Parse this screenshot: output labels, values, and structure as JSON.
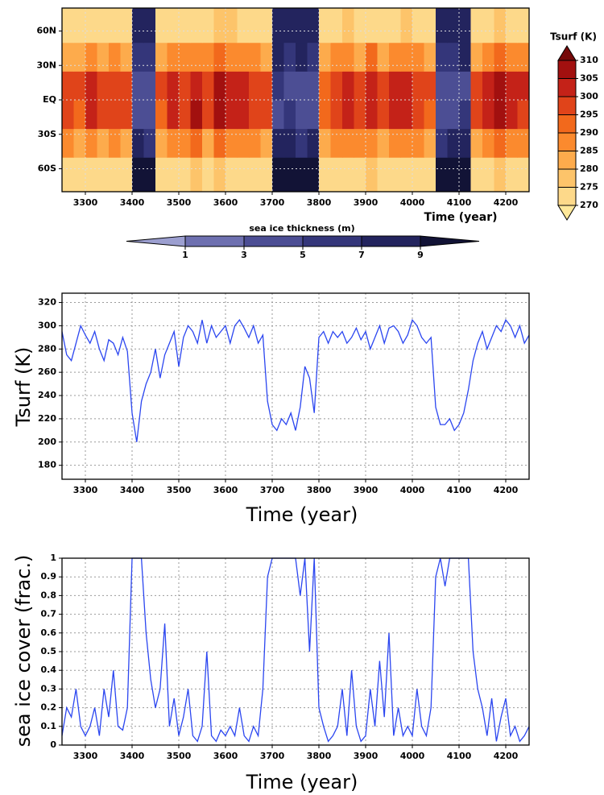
{
  "chart_data": [
    {
      "type": "heatmap",
      "xlabel": "Time (year)",
      "xlim": [
        3250,
        4250
      ],
      "xticks": [
        3300,
        3400,
        3500,
        3600,
        3700,
        3800,
        3900,
        4000,
        4100,
        4200
      ],
      "ylim": [
        -80,
        80
      ],
      "yticks": [
        {
          "value": -60,
          "label": "60S"
        },
        {
          "value": -30,
          "label": "30S"
        },
        {
          "value": 0,
          "label": "EQ"
        },
        {
          "value": 30,
          "label": "30N"
        },
        {
          "value": 60,
          "label": "60N"
        }
      ],
      "grid": true,
      "x_edges": [
        3250,
        3275,
        3300,
        3325,
        3350,
        3375,
        3400,
        3425,
        3450,
        3475,
        3500,
        3525,
        3550,
        3575,
        3600,
        3625,
        3650,
        3675,
        3700,
        3725,
        3750,
        3775,
        3800,
        3825,
        3850,
        3875,
        3900,
        3925,
        3950,
        3975,
        4000,
        4025,
        4050,
        4075,
        4100,
        4125,
        4150,
        4175,
        4200,
        4225,
        4250
      ],
      "y_edges": [
        -80,
        -50,
        -25,
        0,
        25,
        50,
        80
      ],
      "values": [
        [
          272,
          270,
          274,
          271,
          273,
          270,
          null,
          null,
          271,
          274,
          273,
          275,
          272,
          276,
          274,
          273,
          272,
          271,
          null,
          null,
          null,
          null,
          270,
          273,
          274,
          272,
          275,
          271,
          273,
          274,
          272,
          270,
          null,
          null,
          null,
          271,
          273,
          275,
          274,
          272
        ],
        [
          285,
          280,
          287,
          283,
          286,
          282,
          null,
          null,
          282,
          288,
          286,
          290,
          284,
          291,
          288,
          287,
          285,
          283,
          null,
          null,
          null,
          null,
          281,
          286,
          288,
          285,
          289,
          284,
          287,
          289,
          285,
          282,
          null,
          null,
          null,
          283,
          287,
          290,
          288,
          286
        ],
        [
          298,
          294,
          300,
          296,
          299,
          295,
          null,
          null,
          294,
          301,
          299,
          305,
          297,
          306,
          302,
          300,
          298,
          296,
          null,
          null,
          null,
          null,
          293,
          299,
          301,
          298,
          303,
          297,
          300,
          303,
          298,
          294,
          null,
          null,
          null,
          296,
          300,
          305,
          303,
          299
        ],
        [
          297,
          295,
          301,
          295,
          298,
          296,
          null,
          null,
          295,
          302,
          298,
          304,
          298,
          307,
          301,
          301,
          297,
          297,
          null,
          null,
          null,
          null,
          294,
          298,
          302,
          297,
          304,
          296,
          301,
          302,
          299,
          295,
          null,
          null,
          null,
          297,
          301,
          306,
          302,
          300
        ],
        [
          284,
          281,
          286,
          284,
          285,
          283,
          null,
          null,
          283,
          287,
          287,
          289,
          285,
          290,
          289,
          286,
          286,
          282,
          null,
          null,
          null,
          null,
          282,
          285,
          289,
          284,
          290,
          283,
          288,
          288,
          286,
          281,
          null,
          null,
          null,
          284,
          286,
          291,
          287,
          285
        ],
        [
          271,
          270,
          273,
          272,
          272,
          271,
          null,
          null,
          270,
          273,
          274,
          274,
          271,
          275,
          275,
          272,
          273,
          270,
          null,
          null,
          null,
          null,
          271,
          272,
          275,
          271,
          274,
          272,
          272,
          275,
          271,
          270,
          null,
          null,
          null,
          272,
          272,
          276,
          273,
          271
        ]
      ],
      "ice_values": [
        [
          null,
          null,
          null,
          null,
          null,
          null,
          9,
          9,
          null,
          null,
          null,
          null,
          null,
          null,
          null,
          null,
          null,
          null,
          9,
          9,
          9,
          9,
          null,
          null,
          null,
          null,
          null,
          null,
          null,
          null,
          null,
          null,
          9,
          9,
          9,
          null,
          null,
          null,
          null,
          null
        ],
        [
          null,
          null,
          null,
          null,
          null,
          null,
          7,
          6,
          null,
          null,
          null,
          null,
          null,
          null,
          null,
          null,
          null,
          null,
          7,
          7,
          6,
          7,
          null,
          null,
          null,
          null,
          null,
          null,
          null,
          null,
          null,
          null,
          6,
          7,
          7,
          null,
          null,
          null,
          null,
          null
        ],
        [
          null,
          null,
          null,
          null,
          null,
          null,
          4,
          3,
          null,
          null,
          null,
          null,
          null,
          null,
          null,
          null,
          null,
          null,
          4,
          5,
          4,
          4,
          null,
          null,
          null,
          null,
          null,
          null,
          null,
          null,
          null,
          null,
          3,
          4,
          5,
          null,
          null,
          null,
          null,
          null
        ],
        [
          null,
          null,
          null,
          null,
          null,
          null,
          4,
          4,
          null,
          null,
          null,
          null,
          null,
          null,
          null,
          null,
          null,
          null,
          5,
          4,
          4,
          3,
          null,
          null,
          null,
          null,
          null,
          null,
          null,
          null,
          null,
          null,
          4,
          4,
          4,
          null,
          null,
          null,
          null,
          null
        ],
        [
          null,
          null,
          null,
          null,
          null,
          null,
          6,
          6,
          null,
          null,
          null,
          null,
          null,
          null,
          null,
          null,
          null,
          null,
          7,
          6,
          7,
          6,
          null,
          null,
          null,
          null,
          null,
          null,
          null,
          null,
          null,
          null,
          6,
          6,
          7,
          null,
          null,
          null,
          null,
          null
        ],
        [
          null,
          null,
          null,
          null,
          null,
          null,
          8,
          7,
          null,
          null,
          null,
          null,
          null,
          null,
          null,
          null,
          null,
          null,
          8,
          8,
          8,
          8,
          null,
          null,
          null,
          null,
          null,
          null,
          null,
          null,
          null,
          null,
          8,
          8,
          8,
          null,
          null,
          null,
          null,
          null
        ]
      ],
      "colorbar": {
        "title": "Tsurf (K)",
        "ticks": [
          270,
          275,
          280,
          285,
          290,
          295,
          300,
          305,
          310
        ],
        "colors": [
          "#ffe89a",
          "#fdd98a",
          "#fdc46a",
          "#fdab4c",
          "#fb8a2e",
          "#f2691c",
          "#e0441a",
          "#c42218",
          "#a2100f",
          "#760909"
        ]
      },
      "ice_colorbar": {
        "title": "sea ice thickness (m)",
        "ticks": [
          1,
          3,
          5,
          7,
          9
        ],
        "colors": [
          "#9c9fd0",
          "#6e70b0",
          "#4c4e94",
          "#34367a",
          "#23245e",
          "#121336"
        ]
      }
    },
    {
      "type": "line",
      "ylabel": "Tsurf (K)",
      "xlabel": "Time (year)",
      "color": "#2b46f0",
      "xlim": [
        3250,
        4250
      ],
      "xticks": [
        3300,
        3400,
        3500,
        3600,
        3700,
        3800,
        3900,
        4000,
        4100,
        4200
      ],
      "ylim": [
        168,
        328
      ],
      "yticks": [
        180,
        200,
        220,
        240,
        260,
        280,
        300,
        320
      ],
      "grid": true,
      "x": [
        3250,
        3260,
        3270,
        3280,
        3290,
        3300,
        3310,
        3320,
        3330,
        3340,
        3350,
        3360,
        3370,
        3380,
        3390,
        3400,
        3410,
        3420,
        3430,
        3440,
        3450,
        3460,
        3470,
        3480,
        3490,
        3500,
        3510,
        3520,
        3530,
        3540,
        3550,
        3560,
        3570,
        3580,
        3590,
        3600,
        3610,
        3620,
        3630,
        3640,
        3650,
        3660,
        3670,
        3680,
        3690,
        3700,
        3710,
        3720,
        3730,
        3740,
        3750,
        3760,
        3770,
        3780,
        3790,
        3800,
        3810,
        3820,
        3830,
        3840,
        3850,
        3860,
        3870,
        3880,
        3890,
        3900,
        3910,
        3920,
        3930,
        3940,
        3950,
        3960,
        3970,
        3980,
        3990,
        4000,
        4010,
        4020,
        4030,
        4040,
        4050,
        4060,
        4070,
        4080,
        4090,
        4100,
        4110,
        4120,
        4130,
        4140,
        4150,
        4160,
        4170,
        4180,
        4190,
        4200,
        4210,
        4220,
        4230,
        4240,
        4250
      ],
      "values": [
        295,
        275,
        270,
        285,
        300,
        292,
        285,
        295,
        280,
        270,
        288,
        285,
        275,
        290,
        278,
        225,
        200,
        235,
        250,
        260,
        280,
        255,
        275,
        285,
        295,
        265,
        290,
        300,
        295,
        285,
        305,
        285,
        300,
        290,
        295,
        300,
        285,
        300,
        305,
        298,
        290,
        300,
        285,
        292,
        235,
        215,
        210,
        220,
        215,
        225,
        210,
        230,
        265,
        255,
        225,
        290,
        295,
        285,
        295,
        290,
        295,
        285,
        290,
        298,
        288,
        295,
        280,
        290,
        300,
        285,
        298,
        300,
        295,
        285,
        292,
        305,
        300,
        290,
        285,
        290,
        230,
        215,
        215,
        220,
        210,
        215,
        225,
        245,
        270,
        285,
        295,
        280,
        290,
        300,
        295,
        305,
        300,
        290,
        300,
        285,
        292
      ]
    },
    {
      "type": "line",
      "ylabel": "sea ice cover (frac.)",
      "xlabel": "Time (year)",
      "color": "#2b46f0",
      "xlim": [
        3250,
        4250
      ],
      "xticks": [
        3300,
        3400,
        3500,
        3600,
        3700,
        3800,
        3900,
        4000,
        4100,
        4200
      ],
      "ylim": [
        0,
        1
      ],
      "yticks": [
        0,
        0.1,
        0.2,
        0.3,
        0.4,
        0.5,
        0.6,
        0.7,
        0.8,
        0.9,
        1
      ],
      "grid": true,
      "x": [
        3250,
        3260,
        3270,
        3280,
        3290,
        3300,
        3310,
        3320,
        3330,
        3340,
        3350,
        3360,
        3370,
        3380,
        3390,
        3400,
        3410,
        3420,
        3430,
        3440,
        3450,
        3460,
        3470,
        3480,
        3490,
        3500,
        3510,
        3520,
        3530,
        3540,
        3550,
        3560,
        3570,
        3580,
        3590,
        3600,
        3610,
        3620,
        3630,
        3640,
        3650,
        3660,
        3670,
        3680,
        3690,
        3700,
        3710,
        3720,
        3730,
        3740,
        3750,
        3760,
        3770,
        3780,
        3790,
        3800,
        3810,
        3820,
        3830,
        3840,
        3850,
        3860,
        3870,
        3880,
        3890,
        3900,
        3910,
        3920,
        3930,
        3940,
        3950,
        3960,
        3970,
        3980,
        3990,
        4000,
        4010,
        4020,
        4030,
        4040,
        4050,
        4060,
        4070,
        4080,
        4090,
        4100,
        4110,
        4120,
        4130,
        4140,
        4150,
        4160,
        4170,
        4180,
        4190,
        4200,
        4210,
        4220,
        4230,
        4240,
        4250
      ],
      "values": [
        0.05,
        0.2,
        0.15,
        0.3,
        0.1,
        0.05,
        0.1,
        0.2,
        0.05,
        0.3,
        0.15,
        0.4,
        0.1,
        0.08,
        0.2,
        1,
        1,
        1,
        0.6,
        0.35,
        0.2,
        0.3,
        0.65,
        0.1,
        0.25,
        0.05,
        0.15,
        0.3,
        0.05,
        0.02,
        0.1,
        0.5,
        0.05,
        0.02,
        0.08,
        0.05,
        0.1,
        0.05,
        0.2,
        0.05,
        0.02,
        0.1,
        0.05,
        0.3,
        0.9,
        1,
        1,
        1,
        1,
        1,
        1,
        0.8,
        1,
        0.5,
        1,
        0.2,
        0.1,
        0.02,
        0.05,
        0.1,
        0.3,
        0.05,
        0.4,
        0.1,
        0.02,
        0.05,
        0.3,
        0.1,
        0.45,
        0.15,
        0.6,
        0.05,
        0.2,
        0.05,
        0.1,
        0.05,
        0.3,
        0.1,
        0.05,
        0.2,
        0.9,
        1,
        0.85,
        1,
        1,
        1,
        1,
        1,
        0.5,
        0.3,
        0.2,
        0.05,
        0.25,
        0.02,
        0.15,
        0.25,
        0.05,
        0.1,
        0.02,
        0.05,
        0.1
      ]
    }
  ]
}
